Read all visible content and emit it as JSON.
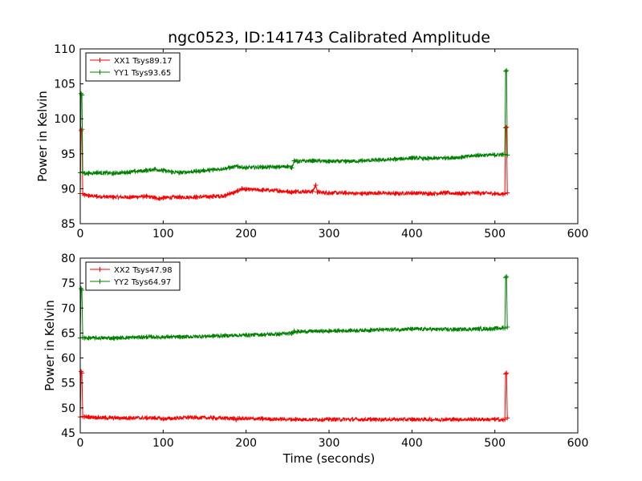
{
  "chart_data": [
    {
      "type": "line",
      "title": "ngc0523, ID:141743 Calibrated Amplitude",
      "xlabel": "",
      "ylabel": "Power in Kelvin",
      "xlim": [
        0,
        600
      ],
      "ylim": [
        85,
        110
      ],
      "xticks": [
        0,
        100,
        200,
        300,
        400,
        500,
        600
      ],
      "yticks": [
        85,
        90,
        95,
        100,
        105,
        110
      ],
      "legend": "top-left",
      "series": [
        {
          "name": "XX1 Tsys89.17",
          "color": "#ff0000",
          "x": [
            0,
            1,
            2,
            3,
            5,
            10,
            20,
            40,
            60,
            80,
            90,
            95,
            100,
            120,
            140,
            160,
            175,
            180,
            185,
            190,
            195,
            200,
            220,
            240,
            250,
            255,
            260,
            280,
            284,
            286,
            300,
            320,
            340,
            360,
            380,
            400,
            420,
            440,
            460,
            480,
            500,
            510,
            512,
            513,
            514,
            515
          ],
          "y": [
            89.3,
            98.3,
            98.5,
            89.3,
            89.1,
            89.0,
            88.9,
            88.8,
            88.8,
            88.9,
            88.7,
            88.6,
            88.7,
            88.8,
            88.8,
            88.9,
            89.0,
            89.3,
            89.4,
            89.7,
            90.0,
            89.9,
            89.8,
            89.7,
            89.6,
            89.5,
            89.6,
            89.6,
            90.5,
            89.5,
            89.4,
            89.4,
            89.3,
            89.4,
            89.3,
            89.4,
            89.3,
            89.4,
            89.3,
            89.4,
            89.3,
            89.2,
            89.3,
            98.7,
            98.8,
            89.4
          ]
        },
        {
          "name": "YY1 Tsys93.65",
          "color": "#008000",
          "x": [
            0,
            1,
            2,
            3,
            5,
            10,
            20,
            40,
            60,
            80,
            90,
            100,
            110,
            120,
            140,
            160,
            180,
            190,
            200,
            220,
            240,
            250,
            255,
            258,
            262,
            280,
            300,
            320,
            340,
            360,
            380,
            400,
            420,
            440,
            460,
            480,
            500,
            510,
            512,
            513,
            514,
            515
          ],
          "y": [
            92.3,
            103.6,
            103.4,
            92.4,
            92.2,
            92.2,
            92.3,
            92.2,
            92.4,
            92.6,
            92.8,
            92.6,
            92.4,
            92.3,
            92.5,
            92.7,
            93.0,
            93.2,
            93.0,
            93.1,
            93.1,
            93.2,
            93.0,
            94.0,
            93.9,
            94.0,
            93.9,
            93.9,
            94.0,
            94.1,
            94.2,
            94.4,
            94.3,
            94.4,
            94.5,
            94.8,
            94.8,
            94.9,
            94.9,
            106.8,
            106.9,
            94.8
          ]
        }
      ]
    },
    {
      "type": "line",
      "title": "",
      "xlabel": "Time (seconds)",
      "ylabel": "Power in Kelvin",
      "xlim": [
        0,
        600
      ],
      "ylim": [
        45,
        80
      ],
      "xticks": [
        0,
        100,
        200,
        300,
        400,
        500,
        600
      ],
      "yticks": [
        45,
        50,
        55,
        60,
        65,
        70,
        75,
        80
      ],
      "legend": "top-left",
      "series": [
        {
          "name": "XX2 Tsys47.98",
          "color": "#ff0000",
          "x": [
            0,
            1,
            2,
            3,
            5,
            10,
            30,
            60,
            90,
            100,
            130,
            160,
            185,
            188,
            190,
            220,
            260,
            300,
            350,
            400,
            450,
            500,
            510,
            512,
            513,
            514,
            515
          ],
          "y": [
            48.2,
            57.3,
            57.0,
            48.3,
            48.2,
            48.2,
            48.0,
            48.0,
            48.0,
            47.8,
            48.1,
            48.0,
            47.9,
            47.6,
            47.9,
            47.8,
            47.7,
            47.7,
            47.7,
            47.7,
            47.7,
            47.7,
            47.6,
            47.7,
            56.8,
            57.0,
            48.0
          ]
        },
        {
          "name": "YY2 Tsys64.97",
          "color": "#008000",
          "x": [
            0,
            1,
            2,
            3,
            5,
            10,
            40,
            80,
            120,
            160,
            200,
            240,
            255,
            258,
            262,
            300,
            350,
            400,
            450,
            500,
            510,
            512,
            513,
            514,
            515
          ],
          "y": [
            64.0,
            73.9,
            73.6,
            64.1,
            64.0,
            64.0,
            64.0,
            64.2,
            64.2,
            64.4,
            64.6,
            64.8,
            64.9,
            65.4,
            65.3,
            65.4,
            65.6,
            65.8,
            65.7,
            65.9,
            66.0,
            66.0,
            76.1,
            76.3,
            66.2
          ]
        }
      ]
    }
  ]
}
